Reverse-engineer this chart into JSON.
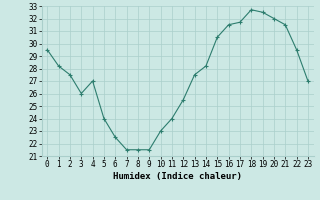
{
  "x": [
    0,
    1,
    2,
    3,
    4,
    5,
    6,
    7,
    8,
    9,
    10,
    11,
    12,
    13,
    14,
    15,
    16,
    17,
    18,
    19,
    20,
    21,
    22,
    23
  ],
  "y": [
    29.5,
    28.2,
    27.5,
    26.0,
    27.0,
    24.0,
    22.5,
    21.5,
    21.5,
    21.5,
    23.0,
    24.0,
    25.5,
    27.5,
    28.2,
    30.5,
    31.5,
    31.7,
    32.7,
    32.5,
    32.0,
    31.5,
    29.5,
    27.0
  ],
  "line_color": "#2d7d6e",
  "marker": "+",
  "markersize": 3,
  "markeredgewidth": 0.8,
  "linewidth": 0.8,
  "bg_color": "#cce8e4",
  "grid_color": "#aacfcb",
  "xlabel": "Humidex (Indice chaleur)",
  "xlabel_fontsize": 6.5,
  "tick_fontsize": 5.5,
  "ylim": [
    21,
    33
  ],
  "xlim": [
    -0.5,
    23.5
  ],
  "yticks": [
    21,
    22,
    23,
    24,
    25,
    26,
    27,
    28,
    29,
    30,
    31,
    32,
    33
  ],
  "xticks": [
    0,
    1,
    2,
    3,
    4,
    5,
    6,
    7,
    8,
    9,
    10,
    11,
    12,
    13,
    14,
    15,
    16,
    17,
    18,
    19,
    20,
    21,
    22,
    23
  ]
}
